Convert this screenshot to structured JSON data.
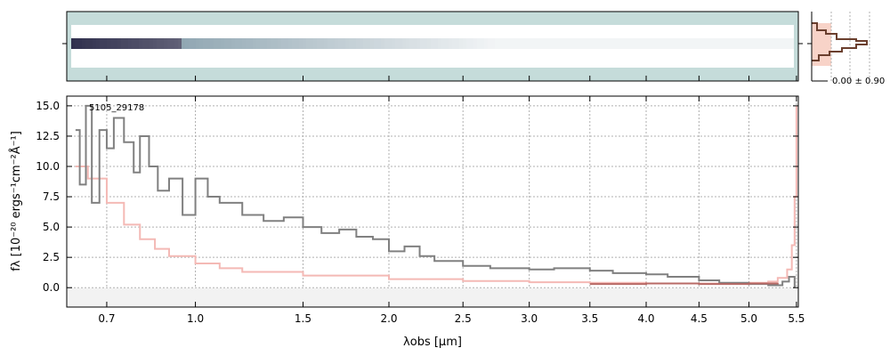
{
  "chart_data": [
    {
      "panel": "2d-spectrum",
      "type": "heatmap",
      "description_colors": {
        "background": "#c5dcda",
        "trace_dark": "#1a1a3a",
        "trace_mid": "#5f7f90"
      }
    },
    {
      "panel": "profile-inset",
      "type": "line",
      "annotation": "0.00 ± 0.90",
      "colors": {
        "fill": "#f8d3c8",
        "line": "#6b3f2e"
      }
    },
    {
      "panel": "1d-spectrum",
      "type": "line",
      "object_label": "5105_29178",
      "xlabel": "λobs [μm]",
      "ylabel": "fλ [10⁻²⁰ ergs⁻¹cm⁻²Å⁻¹]",
      "ylim": [
        -1.6,
        15.8
      ],
      "yticks": [
        "0.0",
        "2.5",
        "5.0",
        "7.5",
        "10.0",
        "12.5",
        "15.0"
      ],
      "xticks": [
        "0.7",
        "1.0",
        "1.5",
        "2.0",
        "2.5",
        "3.0",
        "3.5",
        "4.0",
        "4.5",
        "5.0",
        "5.5"
      ],
      "grid": true,
      "series": [
        {
          "role": "flux",
          "color": "#808080",
          "x": [
            0.62,
            0.63,
            0.645,
            0.66,
            0.68,
            0.7,
            0.72,
            0.75,
            0.78,
            0.8,
            0.83,
            0.86,
            0.9,
            0.95,
            1.0,
            1.05,
            1.1,
            1.2,
            1.3,
            1.4,
            1.5,
            1.6,
            1.7,
            1.8,
            1.9,
            2.0,
            2.1,
            2.2,
            2.3,
            2.5,
            2.7,
            3.0,
            3.2,
            3.5,
            3.7,
            4.0,
            4.2,
            4.5,
            4.7,
            5.0,
            5.2,
            5.35,
            5.42,
            5.48
          ],
          "y": [
            13.0,
            8.5,
            15.0,
            7.0,
            13.0,
            11.5,
            14.0,
            12.0,
            9.5,
            12.5,
            10.0,
            8.0,
            9.0,
            6.0,
            9.0,
            7.5,
            7.0,
            6.0,
            5.5,
            5.8,
            5.0,
            4.5,
            4.8,
            4.2,
            4.0,
            3.0,
            3.4,
            2.6,
            2.2,
            1.8,
            1.6,
            1.5,
            1.6,
            1.4,
            1.2,
            1.1,
            0.9,
            0.6,
            0.4,
            0.3,
            0.2,
            0.5,
            0.9,
            0.0
          ]
        },
        {
          "role": "error",
          "color": "#f4b9b5",
          "x": [
            0.62,
            0.65,
            0.7,
            0.75,
            0.8,
            0.85,
            0.9,
            1.0,
            1.1,
            1.2,
            1.5,
            2.0,
            2.5,
            3.0,
            3.5,
            4.0,
            4.5,
            5.0,
            5.2,
            5.3,
            5.4,
            5.45,
            5.48,
            5.5
          ],
          "y": [
            10.0,
            9.0,
            7.0,
            5.2,
            4.0,
            3.2,
            2.6,
            2.0,
            1.6,
            1.3,
            1.0,
            0.7,
            0.55,
            0.45,
            0.4,
            0.35,
            0.35,
            0.4,
            0.5,
            0.8,
            1.5,
            3.5,
            7.5,
            15.0
          ]
        },
        {
          "role": "model",
          "color": "#b86a66",
          "x": [
            3.5,
            4.0,
            4.5,
            5.0,
            5.3
          ],
          "y": [
            0.3,
            0.35,
            0.3,
            0.35,
            0.4
          ]
        }
      ]
    }
  ]
}
